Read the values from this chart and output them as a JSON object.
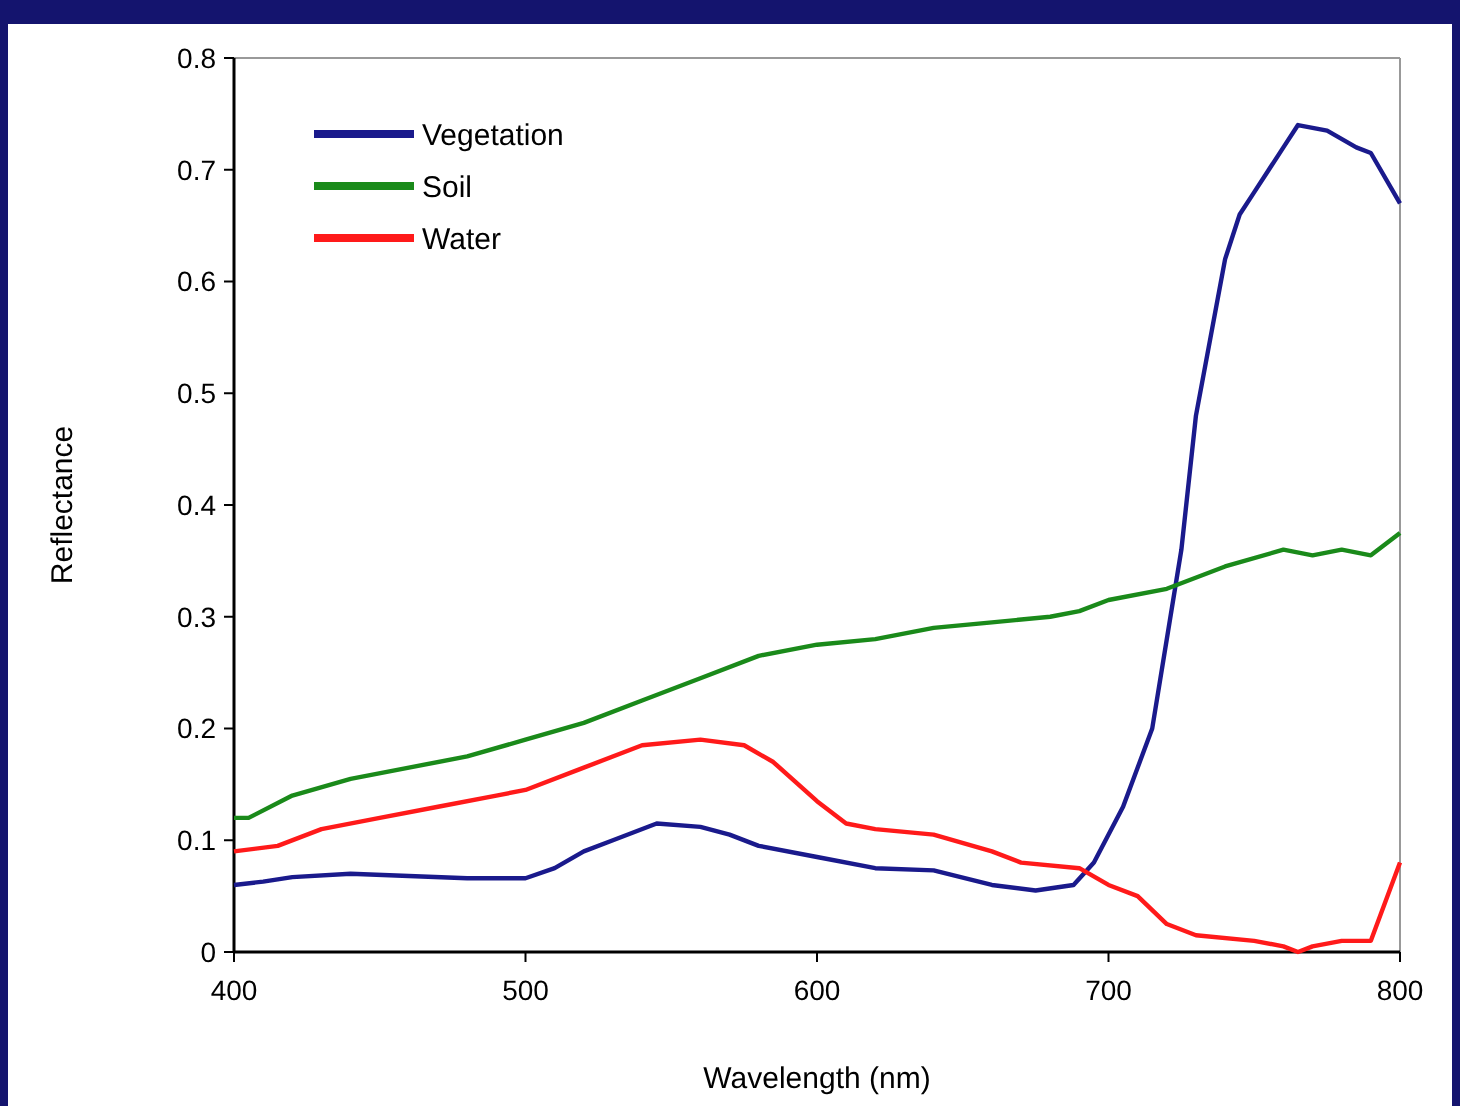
{
  "chart_data": {
    "type": "line",
    "xlabel": "Wavelength (nm)",
    "ylabel": "Reflectance",
    "xlim": [
      400,
      800
    ],
    "xticks": [
      400,
      500,
      600,
      700,
      800
    ],
    "ylim": [
      0,
      0.8
    ],
    "yticks": [
      0,
      0.1,
      0.2,
      0.3,
      0.4,
      0.5,
      0.6,
      0.7,
      0.8
    ],
    "grid": false,
    "legend": "top left",
    "marker": "none",
    "line_style": "solid",
    "series": [
      {
        "name": "Vegetation",
        "color": "#1a1a8c",
        "x": [
          400,
          410,
          420,
          440,
          460,
          480,
          500,
          510,
          520,
          530,
          545,
          560,
          570,
          580,
          600,
          620,
          640,
          660,
          675,
          688,
          695,
          705,
          715,
          720,
          725,
          730,
          735,
          740,
          745,
          750,
          755,
          760,
          765,
          775,
          785,
          790,
          800
        ],
        "values": [
          0.06,
          0.063,
          0.067,
          0.07,
          0.068,
          0.066,
          0.066,
          0.075,
          0.09,
          0.1,
          0.115,
          0.112,
          0.105,
          0.095,
          0.085,
          0.075,
          0.073,
          0.06,
          0.055,
          0.06,
          0.08,
          0.13,
          0.2,
          0.28,
          0.36,
          0.48,
          0.55,
          0.62,
          0.66,
          0.68,
          0.7,
          0.72,
          0.74,
          0.735,
          0.72,
          0.715,
          0.67
        ]
      },
      {
        "name": "Soil",
        "color": "#1a8a1a",
        "x": [
          400,
          405,
          420,
          440,
          460,
          480,
          500,
          520,
          540,
          560,
          580,
          600,
          620,
          640,
          660,
          680,
          690,
          700,
          720,
          740,
          760,
          770,
          780,
          790,
          800
        ],
        "values": [
          0.12,
          0.12,
          0.14,
          0.155,
          0.165,
          0.175,
          0.19,
          0.205,
          0.225,
          0.245,
          0.265,
          0.275,
          0.28,
          0.29,
          0.295,
          0.3,
          0.305,
          0.315,
          0.325,
          0.345,
          0.36,
          0.355,
          0.36,
          0.355,
          0.375
        ]
      },
      {
        "name": "Water",
        "color": "#ff1a1a",
        "x": [
          400,
          415,
          430,
          450,
          470,
          490,
          500,
          520,
          540,
          560,
          575,
          585,
          600,
          610,
          620,
          640,
          660,
          670,
          690,
          700,
          710,
          720,
          730,
          750,
          760,
          765,
          770,
          780,
          790,
          800
        ],
        "values": [
          0.09,
          0.095,
          0.11,
          0.12,
          0.13,
          0.14,
          0.145,
          0.165,
          0.185,
          0.19,
          0.185,
          0.17,
          0.135,
          0.115,
          0.11,
          0.105,
          0.09,
          0.08,
          0.075,
          0.06,
          0.05,
          0.025,
          0.015,
          0.01,
          0.005,
          0,
          0.005,
          0.01,
          0.01,
          0.08
        ]
      }
    ]
  }
}
